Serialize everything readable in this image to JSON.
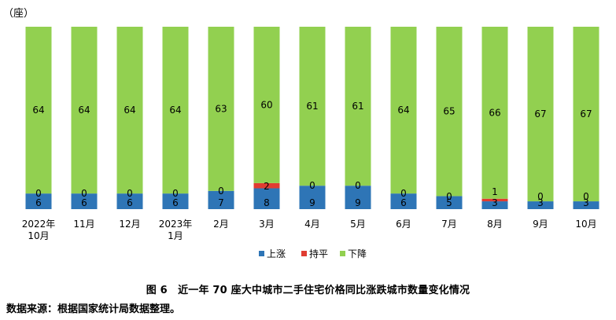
{
  "chart_data": {
    "type": "bar",
    "stacked": true,
    "unit": "（座）",
    "categories": [
      "2022年\n10月",
      "11月",
      "12月",
      "2023年\n1月",
      "2月",
      "3月",
      "4月",
      "5月",
      "6月",
      "7月",
      "8月",
      "9月",
      "10月"
    ],
    "series": [
      {
        "name": "上涨",
        "color": "#2e75b6",
        "values": [
          6,
          6,
          6,
          6,
          7,
          8,
          9,
          9,
          6,
          5,
          3,
          3,
          3
        ]
      },
      {
        "name": "持平",
        "color": "#e03c31",
        "values": [
          0,
          0,
          0,
          0,
          0,
          2,
          0,
          0,
          0,
          0,
          1,
          0,
          0
        ]
      },
      {
        "name": "下降",
        "color": "#92d050",
        "values": [
          64,
          64,
          64,
          64,
          63,
          60,
          61,
          61,
          64,
          65,
          66,
          67,
          67
        ]
      }
    ],
    "ylim": [
      0,
      70
    ],
    "grid": false,
    "legend": "bottom"
  },
  "caption": "图 6　近一年 70 座大中城市二手住宅价格同比涨跌城市数量变化情况",
  "source": "数据来源：根据国家统计局数据整理。"
}
